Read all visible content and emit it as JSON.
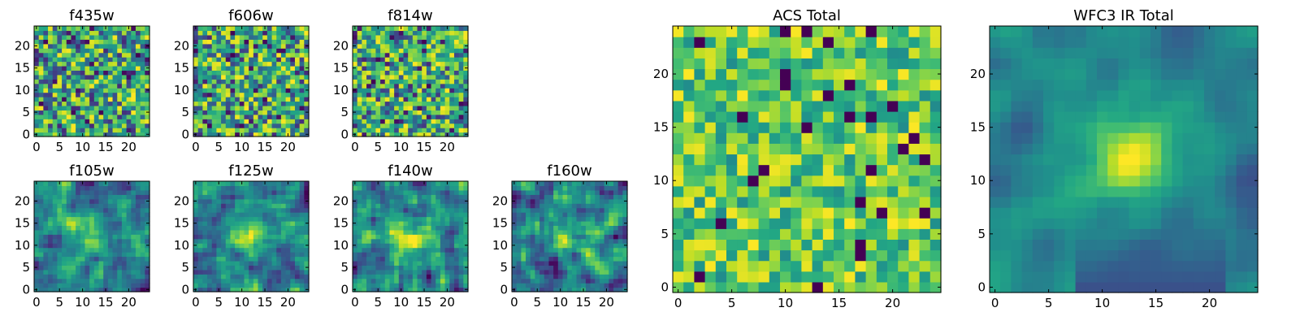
{
  "chart_data": [
    {
      "type": "heatmap",
      "title": "f435w",
      "seed": 11,
      "mode": "noise",
      "grid": 24,
      "xticks": [
        0,
        5,
        10,
        15,
        20
      ],
      "yticks": [
        0,
        5,
        10,
        15,
        20
      ],
      "xlim": [
        -0.5,
        24.5
      ],
      "ylim": [
        -0.5,
        24.5
      ],
      "colormap": "viridis"
    },
    {
      "type": "heatmap",
      "title": "f606w",
      "seed": 23,
      "mode": "noise",
      "grid": 24,
      "xticks": [
        0,
        5,
        10,
        15,
        20
      ],
      "yticks": [
        0,
        5,
        10,
        15,
        20
      ],
      "xlim": [
        -0.5,
        24.5
      ],
      "ylim": [
        -0.5,
        24.5
      ],
      "colormap": "viridis"
    },
    {
      "type": "heatmap",
      "title": "f814w",
      "seed": 37,
      "mode": "noise",
      "grid": 24,
      "xticks": [
        0,
        5,
        10,
        15,
        20
      ],
      "yticks": [
        0,
        5,
        10,
        15,
        20
      ],
      "xlim": [
        -0.5,
        24.5
      ],
      "ylim": [
        -0.5,
        24.5
      ],
      "colormap": "viridis"
    },
    {
      "type": "heatmap",
      "title": "f105w",
      "seed": 41,
      "mode": "smooth",
      "grid": 24,
      "xticks": [
        0,
        5,
        10,
        15,
        20
      ],
      "yticks": [
        0,
        5,
        10,
        15,
        20
      ],
      "xlim": [
        -0.5,
        24.5
      ],
      "ylim": [
        -0.5,
        24.5
      ],
      "colormap": "viridis"
    },
    {
      "type": "heatmap",
      "title": "f125w",
      "seed": 53,
      "mode": "smooth",
      "grid": 24,
      "xticks": [
        0,
        5,
        10,
        15,
        20
      ],
      "yticks": [
        0,
        5,
        10,
        15,
        20
      ],
      "xlim": [
        -0.5,
        24.5
      ],
      "ylim": [
        -0.5,
        24.5
      ],
      "colormap": "viridis"
    },
    {
      "type": "heatmap",
      "title": "f140w",
      "seed": 67,
      "mode": "smooth",
      "grid": 24,
      "xticks": [
        0,
        5,
        10,
        15,
        20
      ],
      "yticks": [
        0,
        5,
        10,
        15,
        20
      ],
      "xlim": [
        -0.5,
        24.5
      ],
      "ylim": [
        -0.5,
        24.5
      ],
      "colormap": "viridis"
    },
    {
      "type": "heatmap",
      "title": "f160w",
      "seed": 79,
      "mode": "smooth",
      "grid": 24,
      "xticks": [
        0,
        5,
        10,
        15,
        20
      ],
      "yticks": [
        0,
        5,
        10,
        15,
        20
      ],
      "xlim": [
        -0.5,
        24.5
      ],
      "ylim": [
        -0.5,
        24.5
      ],
      "colormap": "viridis"
    },
    {
      "type": "heatmap",
      "title": "ACS Total",
      "seed": 97,
      "mode": "acs",
      "grid": 24,
      "xticks": [
        0,
        5,
        10,
        15,
        20
      ],
      "yticks": [
        0,
        5,
        10,
        15,
        20
      ],
      "xlim": [
        -0.5,
        24.5
      ],
      "ylim": [
        -0.5,
        24.5
      ],
      "colormap": "viridis"
    },
    {
      "type": "heatmap",
      "title": "WFC3 IR Total",
      "seed": 113,
      "mode": "wfc3",
      "grid": 24,
      "xticks": [
        0,
        5,
        10,
        15,
        20
      ],
      "yticks": [
        0,
        5,
        10,
        15,
        20
      ],
      "xlim": [
        -0.5,
        24.5
      ],
      "ylim": [
        -0.5,
        24.5
      ],
      "colormap": "viridis"
    }
  ]
}
